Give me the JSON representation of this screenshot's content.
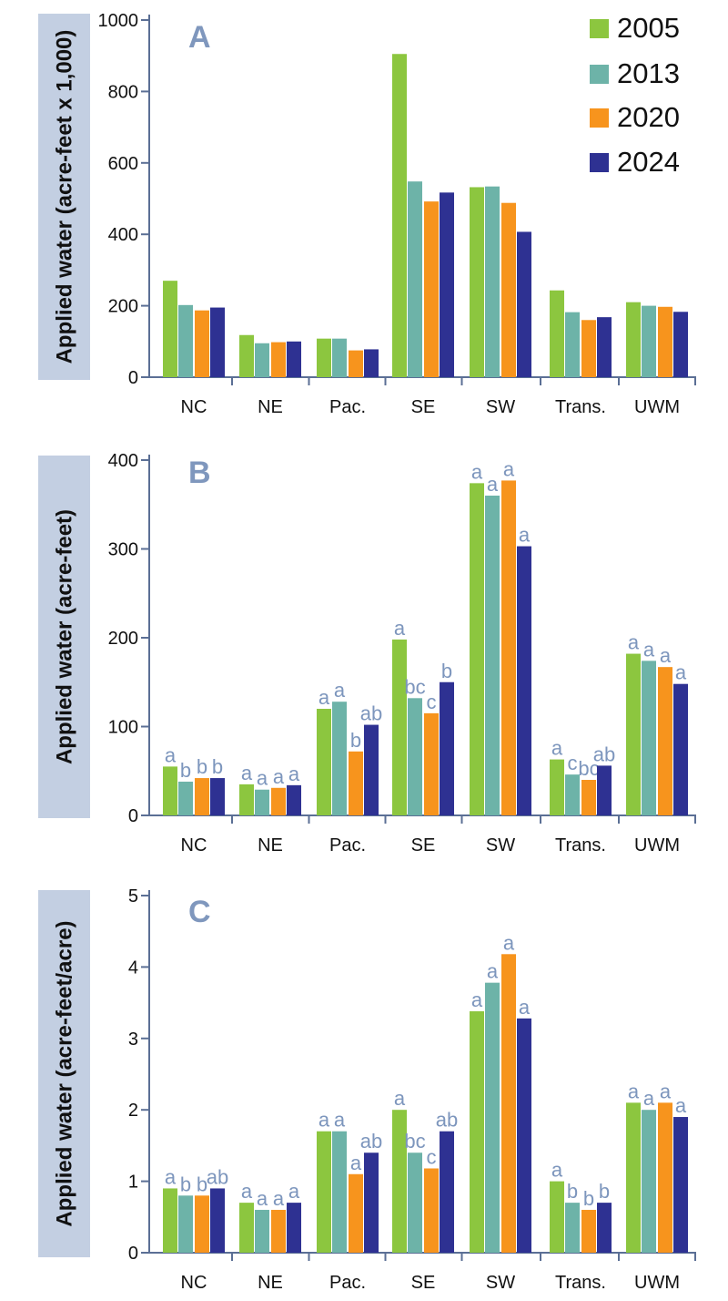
{
  "colors": {
    "2005": "#8cc63f",
    "2013": "#6db3a8",
    "2020": "#f7941d",
    "2024": "#2e3192",
    "axis": "#5b6f95",
    "ylabel_box": "#c3cfe2",
    "sig_text": "#7d96bd",
    "panel_letter": "#7f97bd"
  },
  "legend": {
    "entries": [
      "2005",
      "2013",
      "2020",
      "2024"
    ]
  },
  "chart_data": [
    {
      "type": "bar",
      "panel": "A",
      "title": "A",
      "xlabel": "",
      "ylabel": "Applied water (acre-feet x 1,000)",
      "ylim": [
        0,
        1000
      ],
      "yticks": [
        0,
        200,
        400,
        600,
        800,
        1000
      ],
      "categories": [
        "NC",
        "NE",
        "Pac.",
        "SE",
        "SW",
        "Trans.",
        "UWM"
      ],
      "series": [
        {
          "name": "2005",
          "values": [
            270,
            118,
            108,
            905,
            532,
            243,
            210
          ]
        },
        {
          "name": "2013",
          "values": [
            202,
            95,
            108,
            548,
            534,
            182,
            200
          ]
        },
        {
          "name": "2020",
          "values": [
            187,
            98,
            75,
            492,
            488,
            160,
            197
          ]
        },
        {
          "name": "2024",
          "values": [
            195,
            100,
            78,
            517,
            407,
            168,
            183
          ]
        }
      ]
    },
    {
      "type": "bar",
      "panel": "B",
      "title": "B",
      "xlabel": "",
      "ylabel": "Applied water (acre-feet)",
      "ylim": [
        0,
        400
      ],
      "yticks": [
        0,
        100,
        200,
        300,
        400
      ],
      "categories": [
        "NC",
        "NE",
        "Pac.",
        "SE",
        "SW",
        "Trans.",
        "UWM"
      ],
      "series": [
        {
          "name": "2005",
          "values": [
            55,
            35,
            120,
            198,
            374,
            63,
            182
          ],
          "labels": [
            "a",
            "a",
            "a",
            "a",
            "a",
            "a",
            "a"
          ]
        },
        {
          "name": "2013",
          "values": [
            38,
            29,
            128,
            132,
            360,
            46,
            174
          ],
          "labels": [
            "b",
            "a",
            "a",
            "bc",
            "a",
            "c",
            "a"
          ]
        },
        {
          "name": "2020",
          "values": [
            42,
            31,
            72,
            115,
            377,
            40,
            167
          ],
          "labels": [
            "b",
            "a",
            "b",
            "c",
            "a",
            "bc",
            "a"
          ]
        },
        {
          "name": "2024",
          "values": [
            42,
            34,
            102,
            150,
            303,
            56,
            148
          ],
          "labels": [
            "b",
            "a",
            "ab",
            "b",
            "a",
            "ab",
            "a"
          ]
        }
      ]
    },
    {
      "type": "bar",
      "panel": "C",
      "title": "C",
      "xlabel": "",
      "ylabel": "Applied water (acre-feet/acre)",
      "ylim": [
        0,
        5
      ],
      "yticks": [
        0,
        1,
        2,
        3,
        4,
        5
      ],
      "categories": [
        "NC",
        "NE",
        "Pac.",
        "SE",
        "SW",
        "Trans.",
        "UWM"
      ],
      "series": [
        {
          "name": "2005",
          "values": [
            0.9,
            0.7,
            1.7,
            2.0,
            3.38,
            1.0,
            2.1
          ],
          "labels": [
            "a",
            "a",
            "a",
            "a",
            "a",
            "a",
            "a"
          ]
        },
        {
          "name": "2013",
          "values": [
            0.8,
            0.6,
            1.7,
            1.4,
            3.78,
            0.7,
            2.0
          ],
          "labels": [
            "b",
            "a",
            "a",
            "bc",
            "a",
            "b",
            "a"
          ]
        },
        {
          "name": "2020",
          "values": [
            0.8,
            0.6,
            1.1,
            1.18,
            4.18,
            0.6,
            2.1
          ],
          "labels": [
            "b",
            "a",
            "a",
            "c",
            "a",
            "b",
            "a"
          ]
        },
        {
          "name": "2024",
          "values": [
            0.9,
            0.7,
            1.4,
            1.7,
            3.28,
            0.7,
            1.9
          ],
          "labels": [
            "ab",
            "a",
            "ab",
            "ab",
            "a",
            "b",
            "a"
          ]
        }
      ]
    }
  ]
}
